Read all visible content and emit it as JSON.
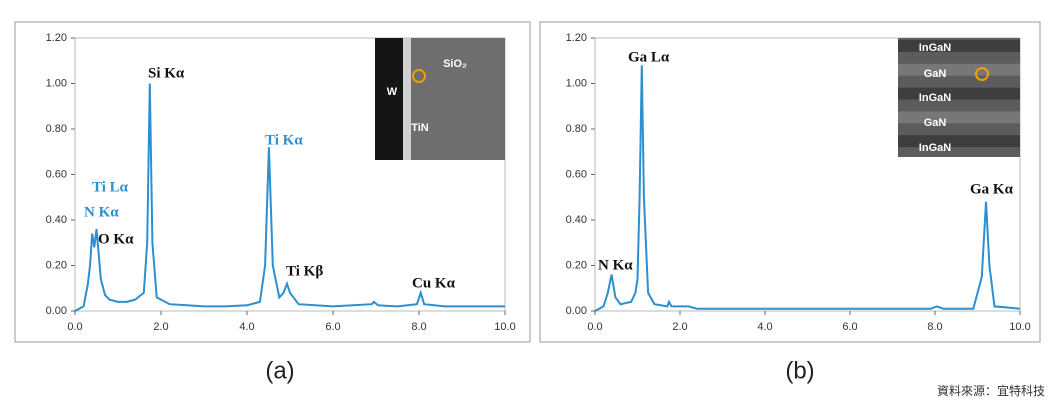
{
  "chart_data": [
    {
      "type": "line",
      "label": "(a)",
      "x": [
        0,
        0.2,
        0.3,
        0.35,
        0.4,
        0.45,
        0.5,
        0.55,
        0.6,
        0.7,
        0.8,
        1.0,
        1.2,
        1.4,
        1.6,
        1.68,
        1.74,
        1.8,
        1.9,
        2.2,
        2.6,
        3.0,
        3.5,
        4.0,
        4.3,
        4.42,
        4.51,
        4.6,
        4.75,
        4.85,
        4.93,
        5.0,
        5.2,
        6.0,
        6.9,
        6.95,
        7.05,
        7.5,
        7.95,
        8.04,
        8.12,
        8.6,
        9.5,
        10
      ],
      "series": [
        {
          "color": "#2b8fd0",
          "values": [
            0,
            0.02,
            0.12,
            0.2,
            0.34,
            0.28,
            0.36,
            0.25,
            0.14,
            0.07,
            0.05,
            0.04,
            0.04,
            0.05,
            0.08,
            0.3,
            1.0,
            0.3,
            0.06,
            0.03,
            0.025,
            0.02,
            0.02,
            0.025,
            0.04,
            0.2,
            0.72,
            0.2,
            0.06,
            0.08,
            0.12,
            0.08,
            0.03,
            0.02,
            0.03,
            0.04,
            0.025,
            0.02,
            0.03,
            0.08,
            0.03,
            0.02,
            0.02,
            0.02
          ]
        }
      ],
      "xlim": [
        0,
        10
      ],
      "ylim": [
        0,
        1.2
      ],
      "xticks": [
        {
          "value": 0,
          "label": "0.0"
        },
        {
          "value": 2,
          "label": "2.0"
        },
        {
          "value": 4,
          "label": "4.0"
        },
        {
          "value": 6,
          "label": "6.0"
        },
        {
          "value": 8,
          "label": "8.0"
        },
        {
          "value": 10,
          "label": "10.0"
        }
      ],
      "yticks": [
        {
          "value": 0,
          "label": "0.00"
        },
        {
          "value": 0.2,
          "label": "0.20"
        },
        {
          "value": 0.4,
          "label": "0.40"
        },
        {
          "value": 0.6,
          "label": "0.60"
        },
        {
          "value": 0.8,
          "label": "0.80"
        },
        {
          "value": 1,
          "label": "1.00"
        },
        {
          "value": 1.2,
          "label": "1.20"
        }
      ],
      "annotations": [
        {
          "text": "Ti Lα",
          "color": "#2b8fd0"
        },
        {
          "text": "N Kα",
          "color": "#2b8fd0"
        },
        {
          "text": "O Kα",
          "color": "#111111"
        },
        {
          "text": "Si Kα",
          "color": "#111111"
        },
        {
          "text": "Ti Kα",
          "color": "#2b8fd0"
        },
        {
          "text": "Ti Kβ",
          "color": "#111111"
        },
        {
          "text": "Cu Kα",
          "color": "#111111"
        }
      ],
      "inset_labels": [
        "W",
        "SiO₂",
        "TiN"
      ]
    },
    {
      "type": "line",
      "label": "(b)",
      "x": [
        0,
        0.2,
        0.3,
        0.39,
        0.48,
        0.6,
        0.85,
        0.95,
        1.0,
        1.05,
        1.1,
        1.15,
        1.25,
        1.4,
        1.7,
        1.74,
        1.8,
        2.2,
        2.4,
        3.0,
        5,
        7.9,
        8.04,
        8.2,
        8.9,
        9.1,
        9.2,
        9.28,
        9.4,
        10
      ],
      "series": [
        {
          "color": "#2b8fd0",
          "values": [
            0,
            0.02,
            0.08,
            0.16,
            0.06,
            0.03,
            0.04,
            0.08,
            0.14,
            0.5,
            1.08,
            0.5,
            0.08,
            0.03,
            0.02,
            0.04,
            0.02,
            0.02,
            0.01,
            0.01,
            0.01,
            0.01,
            0.02,
            0.01,
            0.01,
            0.15,
            0.48,
            0.2,
            0.02,
            0.01
          ]
        }
      ],
      "xlim": [
        0,
        10
      ],
      "ylim": [
        0,
        1.2
      ],
      "xticks": [
        {
          "value": 0,
          "label": "0.0"
        },
        {
          "value": 2,
          "label": "2.0"
        },
        {
          "value": 4,
          "label": "4.0"
        },
        {
          "value": 6,
          "label": "6.0"
        },
        {
          "value": 8,
          "label": "8.0"
        },
        {
          "value": 10,
          "label": "10.0"
        }
      ],
      "yticks": [
        {
          "value": 0,
          "label": "0.00"
        },
        {
          "value": 0.2,
          "label": "0.20"
        },
        {
          "value": 0.4,
          "label": "0.40"
        },
        {
          "value": 0.6,
          "label": "0.60"
        },
        {
          "value": 0.8,
          "label": "0.80"
        },
        {
          "value": 1,
          "label": "1.00"
        },
        {
          "value": 1.2,
          "label": "1.20"
        }
      ],
      "annotations": [
        {
          "text": "Ga Lα",
          "color": "#111111"
        },
        {
          "text": "N Kα",
          "color": "#111111"
        },
        {
          "text": "Ga Kα",
          "color": "#111111"
        }
      ],
      "inset_labels": [
        "InGaN",
        "GaN",
        "InGaN",
        "GaN",
        "InGaN"
      ]
    }
  ],
  "source": "資料來源：宜特科技"
}
